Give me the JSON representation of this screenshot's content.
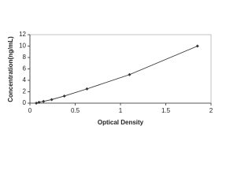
{
  "chart_data": {
    "type": "line",
    "x_label": "Optical Density",
    "y_label": "Concentration(ng/mL)",
    "x": [
      0.07,
      0.1,
      0.15,
      0.24,
      0.38,
      0.63,
      1.1,
      1.85
    ],
    "values": [
      0,
      0.156,
      0.312,
      0.625,
      1.25,
      2.5,
      5,
      10
    ],
    "color": "#333333",
    "xlim": [
      0,
      2
    ],
    "xticks": [
      0,
      0.5,
      1,
      1.5,
      2
    ],
    "ylim": [
      0,
      12
    ],
    "yticks": [
      0,
      2,
      4,
      6,
      8,
      10,
      12
    ]
  }
}
